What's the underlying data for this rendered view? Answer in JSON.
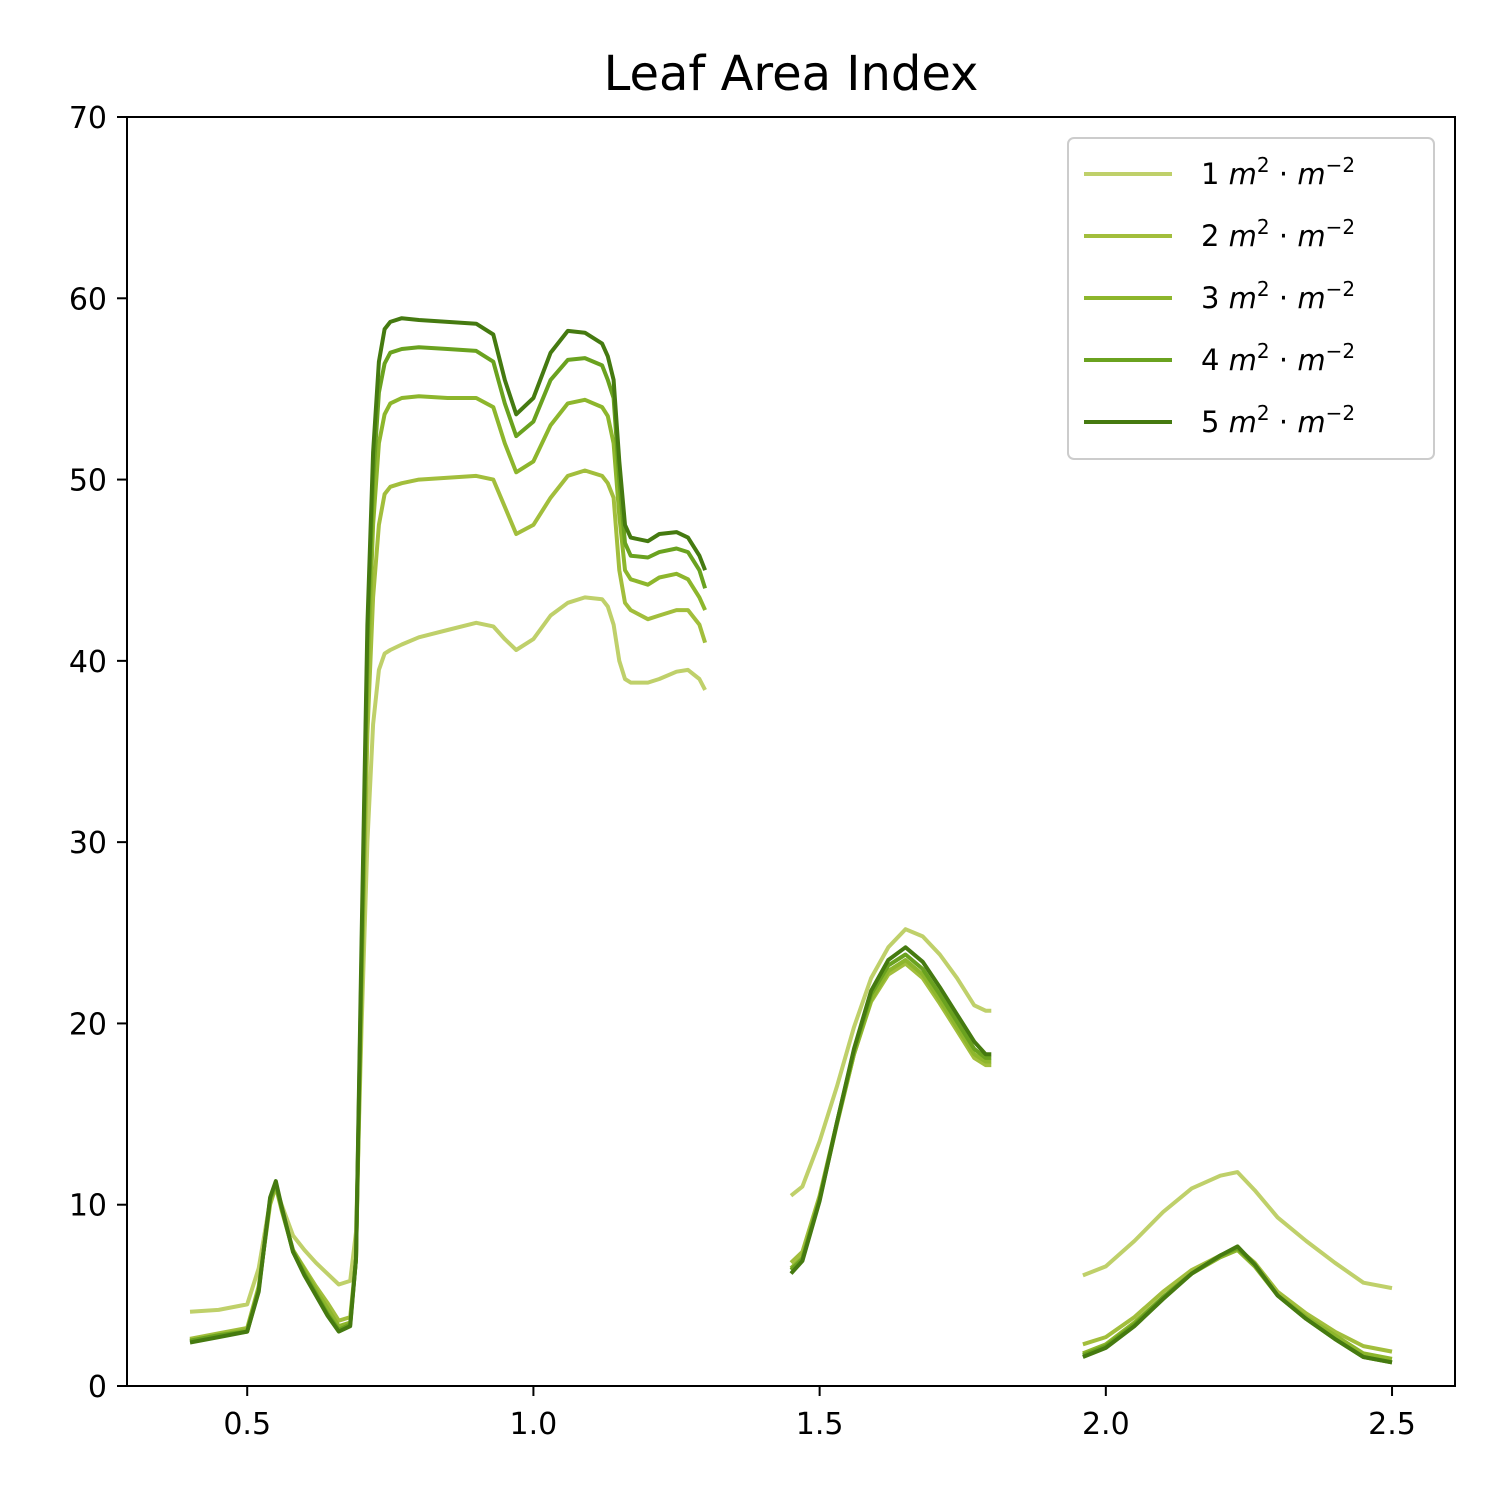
{
  "chart_data": {
    "type": "line",
    "title": "Leaf Area Index",
    "xlabel": "",
    "ylabel": "",
    "xlim": [
      0.29,
      2.61
    ],
    "ylim": [
      0,
      70
    ],
    "x_ticks": [
      "0.5",
      "1.0",
      "1.5",
      "2.0",
      "2.5"
    ],
    "x_tick_values": [
      0.5,
      1.0,
      1.5,
      2.0,
      2.5
    ],
    "y_ticks": [
      "0",
      "10",
      "20",
      "30",
      "40",
      "50",
      "60",
      "70"
    ],
    "y_tick_values": [
      0,
      10,
      20,
      30,
      40,
      50,
      60,
      70
    ],
    "grid": false,
    "legend_position": "top-right",
    "segments": [
      [
        0.4,
        0.45,
        0.5,
        0.52,
        0.54,
        0.55,
        0.56,
        0.58,
        0.6,
        0.62,
        0.64,
        0.66,
        0.68,
        0.69,
        0.7,
        0.71,
        0.72,
        0.73,
        0.74,
        0.75,
        0.77,
        0.8,
        0.85,
        0.9,
        0.93,
        0.95,
        0.97,
        1.0,
        1.03,
        1.06,
        1.09,
        1.12,
        1.13,
        1.14,
        1.15,
        1.16,
        1.17,
        1.2,
        1.22,
        1.25,
        1.27,
        1.29,
        1.3
      ],
      [
        1.45,
        1.47,
        1.5,
        1.53,
        1.56,
        1.59,
        1.62,
        1.65,
        1.68,
        1.71,
        1.74,
        1.77,
        1.79,
        1.8
      ],
      [
        1.96,
        2.0,
        2.05,
        2.1,
        2.15,
        2.2,
        2.23,
        2.26,
        2.3,
        2.35,
        2.4,
        2.45,
        2.5
      ]
    ],
    "series": [
      {
        "name": "1 m²·m⁻²",
        "label_base": "1",
        "color": "#bfd06a",
        "values": [
          [
            4.1,
            4.2,
            4.5,
            6.5,
            10.2,
            11.0,
            10.0,
            8.3,
            7.5,
            6.8,
            6.2,
            5.6,
            5.8,
            8.5,
            20.0,
            30.0,
            36.5,
            39.5,
            40.4,
            40.6,
            40.9,
            41.3,
            41.7,
            42.1,
            41.9,
            41.2,
            40.6,
            41.2,
            42.5,
            43.2,
            43.5,
            43.4,
            43.0,
            42.0,
            40.0,
            39.0,
            38.8,
            38.8,
            39.0,
            39.4,
            39.5,
            39.0,
            38.4
          ],
          [
            10.5,
            11.0,
            13.5,
            16.5,
            19.8,
            22.5,
            24.2,
            25.2,
            24.8,
            23.8,
            22.5,
            21.0,
            20.7,
            20.7
          ],
          [
            6.1,
            6.6,
            8.0,
            9.6,
            10.9,
            11.6,
            11.8,
            10.8,
            9.3,
            8.0,
            6.8,
            5.7,
            5.4
          ]
        ]
      },
      {
        "name": "2 m²·m⁻²",
        "label_base": "2",
        "color": "#a2be3c",
        "values": [
          [
            2.6,
            2.9,
            3.2,
            5.5,
            10.0,
            11.0,
            9.7,
            7.5,
            6.5,
            5.5,
            4.6,
            3.6,
            3.8,
            7.0,
            22.0,
            36.0,
            43.5,
            47.5,
            49.2,
            49.6,
            49.8,
            50.0,
            50.1,
            50.2,
            50.0,
            48.5,
            47.0,
            47.5,
            49.0,
            50.2,
            50.5,
            50.2,
            49.8,
            49.0,
            45.0,
            43.2,
            42.8,
            42.3,
            42.5,
            42.8,
            42.8,
            42.0,
            41.0
          ],
          [
            6.8,
            7.4,
            10.5,
            14.5,
            18.3,
            21.2,
            22.7,
            23.3,
            22.5,
            21.1,
            19.6,
            18.1,
            17.7,
            17.7
          ],
          [
            2.3,
            2.7,
            3.8,
            5.2,
            6.4,
            7.2,
            7.6,
            6.8,
            5.2,
            4.0,
            3.0,
            2.2,
            1.9
          ]
        ]
      },
      {
        "name": "3 m²·m⁻²",
        "label_base": "3",
        "color": "#8db62c",
        "values": [
          [
            2.5,
            2.8,
            3.1,
            5.4,
            10.2,
            11.1,
            9.8,
            7.5,
            6.4,
            5.3,
            4.3,
            3.3,
            3.5,
            7.0,
            23.0,
            39.0,
            47.5,
            52.0,
            53.6,
            54.2,
            54.5,
            54.6,
            54.5,
            54.5,
            54.0,
            52.0,
            50.4,
            51.0,
            53.0,
            54.2,
            54.4,
            54.0,
            53.5,
            52.0,
            48.0,
            45.0,
            44.5,
            44.2,
            44.6,
            44.8,
            44.5,
            43.5,
            42.8
          ],
          [
            6.5,
            7.1,
            10.3,
            14.4,
            18.3,
            21.3,
            22.9,
            23.5,
            22.7,
            21.3,
            19.8,
            18.3,
            17.9,
            17.9
          ],
          [
            1.8,
            2.3,
            3.5,
            4.9,
            6.2,
            7.1,
            7.5,
            6.6,
            5.0,
            3.8,
            2.8,
            1.8,
            1.5
          ]
        ]
      },
      {
        "name": "4 m²·m⁻²",
        "label_base": "4",
        "color": "#6aa21f",
        "values": [
          [
            2.5,
            2.8,
            3.0,
            5.3,
            10.3,
            11.2,
            9.8,
            7.4,
            6.2,
            5.1,
            4.0,
            3.1,
            3.4,
            7.0,
            24.0,
            41.0,
            50.0,
            54.8,
            56.4,
            57.0,
            57.2,
            57.3,
            57.2,
            57.1,
            56.5,
            54.2,
            52.4,
            53.2,
            55.5,
            56.6,
            56.7,
            56.3,
            55.5,
            54.5,
            50.0,
            46.5,
            45.8,
            45.7,
            46.0,
            46.2,
            46.0,
            45.0,
            44.0
          ],
          [
            6.4,
            7.0,
            10.3,
            14.5,
            18.5,
            21.6,
            23.2,
            23.8,
            23.0,
            21.6,
            20.1,
            18.6,
            18.1,
            18.1
          ],
          [
            1.7,
            2.2,
            3.4,
            4.9,
            6.2,
            7.2,
            7.6,
            6.7,
            5.0,
            3.7,
            2.6,
            1.6,
            1.3
          ]
        ]
      },
      {
        "name": "5 m²·m⁻²",
        "label_base": "5",
        "color": "#457a10",
        "values": [
          [
            2.4,
            2.7,
            3.0,
            5.2,
            10.4,
            11.3,
            9.9,
            7.4,
            6.1,
            5.0,
            3.9,
            3.0,
            3.3,
            7.0,
            25.0,
            42.0,
            51.5,
            56.5,
            58.3,
            58.7,
            58.9,
            58.8,
            58.7,
            58.6,
            58.0,
            55.5,
            53.6,
            54.5,
            57.0,
            58.2,
            58.1,
            57.5,
            56.8,
            55.5,
            51.0,
            47.5,
            46.8,
            46.6,
            47.0,
            47.1,
            46.8,
            45.8,
            45.0
          ],
          [
            6.2,
            6.9,
            10.2,
            14.5,
            18.6,
            21.8,
            23.5,
            24.2,
            23.4,
            22.0,
            20.5,
            19.0,
            18.3,
            18.3
          ],
          [
            1.6,
            2.1,
            3.3,
            4.8,
            6.2,
            7.2,
            7.7,
            6.7,
            5.0,
            3.7,
            2.6,
            1.6,
            1.3
          ]
        ]
      }
    ]
  }
}
